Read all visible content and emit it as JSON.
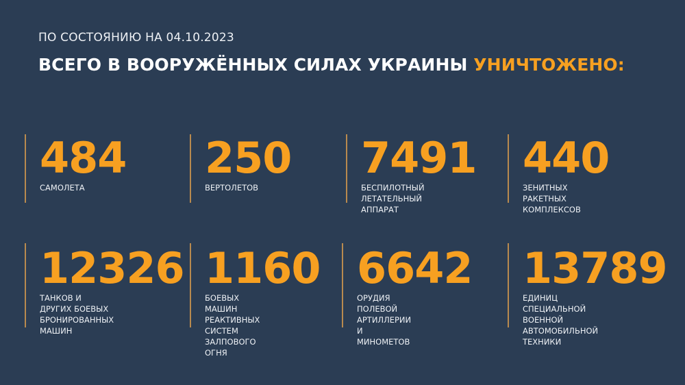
{
  "header": {
    "date_line": "ПО СОСТОЯНИЮ НА 04.10.2023",
    "title_main": "ВСЕГО В ВООРУЖЁННЫХ СИЛАХ УКРАИНЫ ",
    "title_highlight": "УНИЧТОЖЕНО:"
  },
  "colors": {
    "background": "#2b3d54",
    "accent": "#f7a021",
    "text": "#ffffff"
  },
  "stats": [
    {
      "value": "484",
      "label": "САМОЛЕТА"
    },
    {
      "value": "250",
      "label": "ВЕРТОЛЕТОВ"
    },
    {
      "value": "7491",
      "label": "БЕСПИЛОТНЫЙ\nЛЕТАТЕЛЬНЫЙ АППАРАТ"
    },
    {
      "value": "440",
      "label": "ЗЕНИТНЫХ РАКЕТНЫХ\nКОМПЛЕКСОВ"
    },
    {
      "value": "12326",
      "label": "ТАНКОВ И ДРУГИХ БОЕВЫХ\nБРОНИРОВАННЫХ МАШИН"
    },
    {
      "value": "1160",
      "label": "БОЕВЫХ МАШИН\nРЕАКТИВНЫХ СИСТЕМ\nЗАЛПОВОГО ОГНЯ"
    },
    {
      "value": "6642",
      "label": "ОРУДИЯ ПОЛЕВОЙ\nАРТИЛЛЕРИИ И МИНОМЕТОВ"
    },
    {
      "value": "13789",
      "label": "ЕДИНИЦ СПЕЦИАЛЬНОЙ\nВОЕННОЙ АВТОМОБИЛЬНОЙ\nТЕХНИКИ"
    }
  ]
}
